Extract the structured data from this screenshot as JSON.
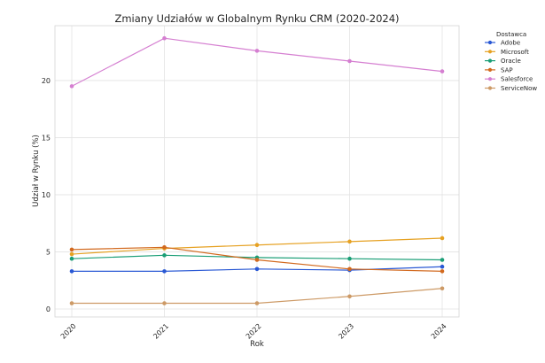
{
  "chart_data": {
    "type": "line",
    "title": "Zmiany Udziałów w Globalnym Rynku CRM (2020-2024)",
    "xlabel": "Rok",
    "ylabel": "Udział w Rynku (%)",
    "x": [
      "2020",
      "2021",
      "2022",
      "2023",
      "2024"
    ],
    "ylim": [
      -0.7,
      24.8
    ],
    "yticks": [
      "0",
      "5",
      "10",
      "15",
      "20"
    ],
    "grid": true,
    "legend": {
      "title": "Dostawca",
      "position": "outside-top-right"
    },
    "series": [
      {
        "name": "Adobe",
        "color": "#2958d4",
        "values": [
          3.3,
          3.3,
          3.5,
          3.4,
          3.7
        ]
      },
      {
        "name": "Microsoft",
        "color": "#e6a122",
        "values": [
          4.8,
          5.3,
          5.6,
          5.9,
          6.2
        ]
      },
      {
        "name": "Oracle",
        "color": "#1a9e76",
        "values": [
          4.4,
          4.7,
          4.5,
          4.4,
          4.3
        ]
      },
      {
        "name": "SAP",
        "color": "#d2691e",
        "values": [
          5.2,
          5.4,
          4.3,
          3.5,
          3.3
        ]
      },
      {
        "name": "Salesforce",
        "color": "#d57fd1",
        "values": [
          19.5,
          23.7,
          22.6,
          21.7,
          20.8
        ]
      },
      {
        "name": "ServiceNow",
        "color": "#cd9a66",
        "values": [
          0.5,
          0.5,
          0.5,
          1.1,
          1.8
        ]
      }
    ]
  }
}
